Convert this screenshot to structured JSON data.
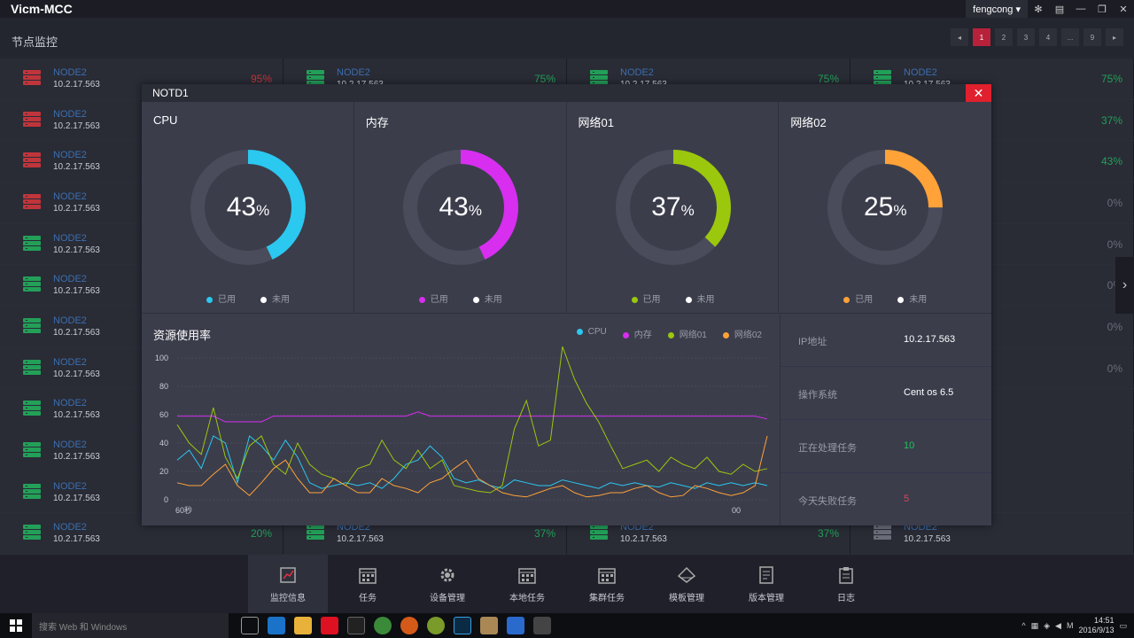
{
  "app": {
    "title": "Vicm-MCC",
    "user": "fengcong ▾"
  },
  "page": {
    "title": "节点监控"
  },
  "pager": [
    "◂",
    "1",
    "2",
    "3",
    "4",
    "...",
    "9",
    "▸"
  ],
  "nodes": [
    {
      "name": "NODE2",
      "ip": "10.2.17.563",
      "pct": "95%",
      "status": "red"
    },
    {
      "name": "NODE2",
      "ip": "10.2.17.563",
      "pct": "75%",
      "status": "green"
    },
    {
      "name": "NODE2",
      "ip": "10.2.17.563",
      "pct": "75%",
      "status": "green"
    },
    {
      "name": "NODE2",
      "ip": "10.2.17.563",
      "pct": "75%",
      "status": "green"
    },
    {
      "name": "NODE2",
      "ip": "10.2.17.563",
      "pct": "",
      "status": "red"
    },
    {
      "name": "",
      "ip": "",
      "pct": "",
      "status": "green"
    },
    {
      "name": "",
      "ip": "",
      "pct": "",
      "status": "green"
    },
    {
      "name": "",
      "ip": "",
      "pct": "37%",
      "status": "green"
    },
    {
      "name": "NODE2",
      "ip": "10.2.17.563",
      "pct": "",
      "status": "red"
    },
    {
      "name": "",
      "ip": "",
      "pct": "",
      "status": "green"
    },
    {
      "name": "",
      "ip": "",
      "pct": "",
      "status": "green"
    },
    {
      "name": "",
      "ip": "",
      "pct": "43%",
      "status": "green"
    },
    {
      "name": "NODE2",
      "ip": "10.2.17.563",
      "pct": "",
      "status": "red"
    },
    {
      "name": "",
      "ip": "",
      "pct": "",
      "status": "green"
    },
    {
      "name": "",
      "ip": "",
      "pct": "",
      "status": "green"
    },
    {
      "name": "",
      "ip": "",
      "pct": "0%",
      "status": "gray"
    },
    {
      "name": "NODE2",
      "ip": "10.2.17.563",
      "pct": "",
      "status": "green"
    },
    {
      "name": "",
      "ip": "",
      "pct": "",
      "status": "green"
    },
    {
      "name": "",
      "ip": "",
      "pct": "",
      "status": "green"
    },
    {
      "name": "",
      "ip": "",
      "pct": "0%",
      "status": "gray"
    },
    {
      "name": "NODE2",
      "ip": "10.2.17.563",
      "pct": "",
      "status": "green"
    },
    {
      "name": "",
      "ip": "",
      "pct": "",
      "status": "green"
    },
    {
      "name": "",
      "ip": "",
      "pct": "",
      "status": "green"
    },
    {
      "name": "",
      "ip": "",
      "pct": "0%",
      "status": "gray"
    },
    {
      "name": "NODE2",
      "ip": "10.2.17.563",
      "pct": "",
      "status": "green"
    },
    {
      "name": "",
      "ip": "",
      "pct": "",
      "status": "green"
    },
    {
      "name": "",
      "ip": "",
      "pct": "",
      "status": "green"
    },
    {
      "name": "",
      "ip": "",
      "pct": "0%",
      "status": "gray"
    },
    {
      "name": "NODE2",
      "ip": "10.2.17.563",
      "pct": "",
      "status": "green"
    },
    {
      "name": "",
      "ip": "",
      "pct": "",
      "status": "green"
    },
    {
      "name": "",
      "ip": "",
      "pct": "",
      "status": "green"
    },
    {
      "name": "",
      "ip": "",
      "pct": "0%",
      "status": "gray"
    },
    {
      "name": "NODE2",
      "ip": "10.2.17.563",
      "pct": "",
      "status": "green"
    },
    {
      "name": "",
      "ip": "",
      "pct": "",
      "status": "green"
    },
    {
      "name": "",
      "ip": "",
      "pct": "",
      "status": "green"
    },
    {
      "name": "",
      "ip": "",
      "pct": "",
      "status": "gray"
    },
    {
      "name": "NODE2",
      "ip": "10.2.17.563",
      "pct": "",
      "status": "green"
    },
    {
      "name": "",
      "ip": "",
      "pct": "",
      "status": "green"
    },
    {
      "name": "",
      "ip": "",
      "pct": "",
      "status": "green"
    },
    {
      "name": "",
      "ip": "",
      "pct": "",
      "status": "gray"
    },
    {
      "name": "NODE2",
      "ip": "10.2.17.563",
      "pct": "",
      "status": "green"
    },
    {
      "name": "",
      "ip": "",
      "pct": "",
      "status": "green"
    },
    {
      "name": "",
      "ip": "",
      "pct": "",
      "status": "green"
    },
    {
      "name": "",
      "ip": "",
      "pct": "",
      "status": "gray"
    },
    {
      "name": "NODE2",
      "ip": "10.2.17.563",
      "pct": "20%",
      "status": "green"
    },
    {
      "name": "NODE2",
      "ip": "10.2.17.563",
      "pct": "37%",
      "status": "green"
    },
    {
      "name": "NODE2",
      "ip": "10.2.17.563",
      "pct": "37%",
      "status": "green"
    },
    {
      "name": "NODE2",
      "ip": "10.2.17.563",
      "pct": "",
      "status": "gray"
    }
  ],
  "modal": {
    "title": "NOTD1",
    "close": "✕"
  },
  "gauges": [
    {
      "title": "CPU",
      "value": 43,
      "color": "#2bc8f0",
      "used": "已用",
      "unused": "未用"
    },
    {
      "title": "内存",
      "value": 43,
      "color": "#d72ef0",
      "used": "已用",
      "unused": "未用"
    },
    {
      "title": "网络01",
      "value": 37,
      "color": "#9bc70d",
      "used": "已用",
      "unused": "未用"
    },
    {
      "title": "网络02",
      "value": 25,
      "color": "#ffa238",
      "used": "已用",
      "unused": "未用"
    }
  ],
  "chart_data": {
    "type": "line",
    "title": "资源使用率",
    "yticks": [
      "100",
      "80",
      "60",
      "40",
      "20",
      "0"
    ],
    "ylim": [
      0,
      100
    ],
    "xlabel_left": "60秒",
    "xlabel_right": "00",
    "series": [
      {
        "name": "CPU",
        "color": "#2bc8f0",
        "values": [
          28,
          35,
          22,
          45,
          40,
          12,
          45,
          38,
          28,
          42,
          30,
          12,
          8,
          10,
          12,
          10,
          12,
          8,
          15,
          25,
          28,
          38,
          30,
          15,
          12,
          14,
          10,
          8,
          14,
          12,
          10,
          10,
          14,
          12,
          10,
          8,
          12,
          10,
          12,
          10,
          9,
          12,
          10,
          8,
          12,
          10,
          12,
          10,
          12,
          10
        ]
      },
      {
        "name": "内存",
        "color": "#d72ef0",
        "values": [
          59,
          59,
          59,
          59,
          55,
          55,
          55,
          55,
          59,
          59,
          59,
          59,
          59,
          59,
          59,
          59,
          59,
          59,
          59,
          59,
          62,
          59,
          59,
          59,
          59,
          59,
          59,
          59,
          59,
          59,
          59,
          59,
          59,
          59,
          59,
          59,
          59,
          59,
          59,
          59,
          59,
          59,
          59,
          59,
          59,
          59,
          59,
          59,
          59,
          57
        ]
      },
      {
        "name": "网络01",
        "color": "#9bc70d",
        "values": [
          53,
          40,
          32,
          65,
          30,
          15,
          38,
          45,
          25,
          18,
          40,
          25,
          18,
          15,
          10,
          22,
          25,
          42,
          28,
          22,
          35,
          22,
          28,
          10,
          8,
          6,
          5,
          10,
          50,
          70,
          38,
          42,
          108,
          85,
          68,
          55,
          38,
          22,
          25,
          28,
          20,
          30,
          25,
          22,
          30,
          20,
          18,
          25,
          20,
          22
        ]
      },
      {
        "name": "网络02",
        "color": "#ffa238",
        "values": [
          12,
          10,
          10,
          18,
          25,
          10,
          3,
          12,
          22,
          28,
          15,
          5,
          5,
          15,
          10,
          5,
          5,
          15,
          10,
          8,
          5,
          12,
          15,
          22,
          28,
          15,
          10,
          5,
          3,
          2,
          5,
          8,
          10,
          5,
          2,
          3,
          5,
          5,
          8,
          10,
          5,
          2,
          3,
          10,
          8,
          5,
          3,
          5,
          10,
          45
        ]
      }
    ]
  },
  "info": [
    {
      "k": "IP地址",
      "v": "10.2.17.563",
      "c": ""
    },
    {
      "k": "操作系统",
      "v": "Cent os 6.5",
      "c": ""
    },
    {
      "k": "正在处理任务",
      "v": "10",
      "c": "green"
    },
    {
      "k": "今天失败任务",
      "v": "5",
      "c": "red"
    }
  ],
  "nav": [
    {
      "label": "监控信息",
      "icon": "chart-icon",
      "active": true
    },
    {
      "label": "任务",
      "icon": "calendar-icon"
    },
    {
      "label": "设备管理",
      "icon": "gear-icon"
    },
    {
      "label": "本地任务",
      "icon": "calendar-icon"
    },
    {
      "label": "集群任务",
      "icon": "calendar-icon"
    },
    {
      "label": "模板管理",
      "icon": "template-icon"
    },
    {
      "label": "版本管理",
      "icon": "document-icon"
    },
    {
      "label": "日志",
      "icon": "clipboard-icon"
    }
  ],
  "taskbar": {
    "search": "搜索 Web 和 Windows",
    "time": "14:51",
    "date": "2016/9/13"
  }
}
